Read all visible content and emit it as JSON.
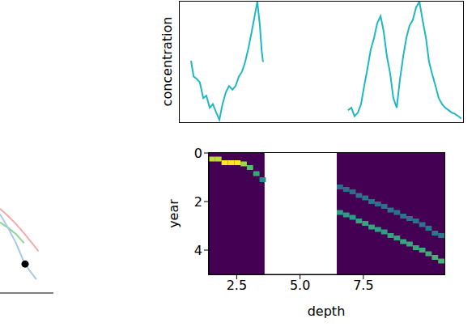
{
  "chart_data": [
    {
      "type": "line",
      "xlim": [
        0,
        1
      ],
      "ylim": [
        0,
        1
      ],
      "tick_labels": false,
      "series": [
        {
          "color": "#f4aaaa",
          "x": [
            0,
            0.15,
            0.3,
            0.45,
            0.6,
            0.72
          ],
          "values": [
            0.93,
            0.85,
            0.76,
            0.66,
            0.55,
            0.46
          ]
        },
        {
          "color": "#8fd48f",
          "x": [
            0,
            0.15,
            0.3,
            0.45
          ],
          "values": [
            0.78,
            0.72,
            0.65,
            0.55
          ]
        },
        {
          "color": "#a6c8ec",
          "x": [
            0,
            0.15,
            0.3,
            0.45,
            0.55,
            0.68
          ],
          "values": [
            0.87,
            0.72,
            0.55,
            0.34,
            0.25,
            0.15
          ]
        }
      ],
      "points": {
        "color": "#000000",
        "x": [
          0.47
        ],
        "values": [
          0.32
        ]
      }
    },
    {
      "type": "line",
      "ylabel": "concentration",
      "xlim": [
        0,
        10
      ],
      "ylim": [
        0,
        1
      ],
      "tick_labels": false,
      "x": [
        0.4,
        0.49,
        0.6,
        0.71,
        0.83,
        0.94,
        1.06,
        1.17,
        1.29,
        1.4,
        1.51,
        1.63,
        1.74,
        1.86,
        1.97,
        2.09,
        2.2,
        2.31,
        2.43,
        2.54,
        2.66,
        2.74,
        2.83,
        2.89,
        2.94,
        4.5,
        5.94,
        6.06,
        6.17,
        6.29,
        6.4,
        6.51,
        6.63,
        6.74,
        6.86,
        6.97,
        7.09,
        7.2,
        7.31,
        7.43,
        7.54,
        7.66,
        7.77,
        7.89,
        8.0,
        8.11,
        8.23,
        8.34,
        8.46,
        8.57,
        8.69,
        8.8,
        8.91,
        9.03,
        9.14,
        9.26,
        9.37,
        9.49,
        9.6,
        9.71,
        9.83,
        9.94
      ],
      "series": [
        {
          "color": "#1fb8c1",
          "values": [
            0.51,
            0.38,
            0.36,
            0.33,
            0.2,
            0.22,
            0.12,
            0.15,
            0.08,
            0.02,
            0.15,
            0.25,
            0.3,
            0.27,
            0.3,
            0.38,
            0.42,
            0.5,
            0.62,
            0.75,
            0.9,
            1.0,
            0.8,
            0.6,
            0.5,
            null,
            0.1,
            0.12,
            0.05,
            0.08,
            0.15,
            0.3,
            0.45,
            0.6,
            0.7,
            0.82,
            0.88,
            0.75,
            0.55,
            0.4,
            0.2,
            0.12,
            0.35,
            0.55,
            0.7,
            0.8,
            0.85,
            0.95,
            1.0,
            0.85,
            0.7,
            0.5,
            0.4,
            0.3,
            0.2,
            0.15,
            0.12,
            0.1,
            0.08,
            0.07,
            0.05,
            0.03
          ]
        }
      ]
    },
    {
      "type": "heatmap",
      "xlabel": "depth",
      "ylabel": "year",
      "xlim": [
        1.4,
        10.7
      ],
      "ylim": [
        0,
        5
      ],
      "xticks": [
        2.5,
        {
          "value": 5,
          "label": "5.0"
        },
        7.5
      ],
      "yticks": [
        0,
        2,
        4
      ],
      "color_range": [
        0,
        1
      ],
      "background": 0,
      "missing": [
        3.6,
        6.45
      ],
      "cell_size": [
        0.25,
        0.2
      ],
      "cells": [
        [
          1.4,
          0.15,
          0.9
        ],
        [
          1.65,
          0.15,
          0.9
        ],
        [
          1.9,
          0.3,
          1.0
        ],
        [
          2.15,
          0.3,
          1.0
        ],
        [
          2.4,
          0.3,
          1.0
        ],
        [
          2.65,
          0.35,
          0.85
        ],
        [
          2.9,
          0.5,
          0.7
        ],
        [
          3.15,
          0.75,
          0.6
        ],
        [
          3.4,
          1.0,
          0.5
        ],
        [
          6.45,
          1.3,
          0.35
        ],
        [
          6.7,
          1.4,
          0.35
        ],
        [
          6.95,
          1.5,
          0.35
        ],
        [
          7.2,
          1.65,
          0.38
        ],
        [
          7.45,
          1.75,
          0.38
        ],
        [
          7.7,
          1.9,
          0.38
        ],
        [
          7.95,
          2.0,
          0.36
        ],
        [
          8.2,
          2.1,
          0.36
        ],
        [
          8.45,
          2.25,
          0.38
        ],
        [
          8.7,
          2.35,
          0.38
        ],
        [
          8.95,
          2.5,
          0.38
        ],
        [
          9.2,
          2.6,
          0.36
        ],
        [
          9.45,
          2.7,
          0.36
        ],
        [
          9.7,
          2.85,
          0.38
        ],
        [
          9.95,
          3.0,
          0.38
        ],
        [
          10.2,
          3.2,
          0.4
        ],
        [
          10.45,
          3.3,
          0.4
        ],
        [
          6.45,
          2.35,
          0.55
        ],
        [
          6.7,
          2.45,
          0.55
        ],
        [
          6.95,
          2.55,
          0.55
        ],
        [
          7.2,
          2.7,
          0.58
        ],
        [
          7.45,
          2.8,
          0.58
        ],
        [
          7.7,
          2.95,
          0.58
        ],
        [
          7.95,
          3.05,
          0.56
        ],
        [
          8.2,
          3.15,
          0.56
        ],
        [
          8.45,
          3.3,
          0.58
        ],
        [
          8.7,
          3.4,
          0.58
        ],
        [
          8.95,
          3.55,
          0.6
        ],
        [
          9.2,
          3.65,
          0.6
        ],
        [
          9.45,
          3.8,
          0.6
        ],
        [
          9.7,
          3.9,
          0.62
        ],
        [
          9.95,
          4.05,
          0.62
        ],
        [
          10.2,
          4.2,
          0.65
        ],
        [
          10.45,
          4.35,
          0.65
        ]
      ]
    }
  ]
}
